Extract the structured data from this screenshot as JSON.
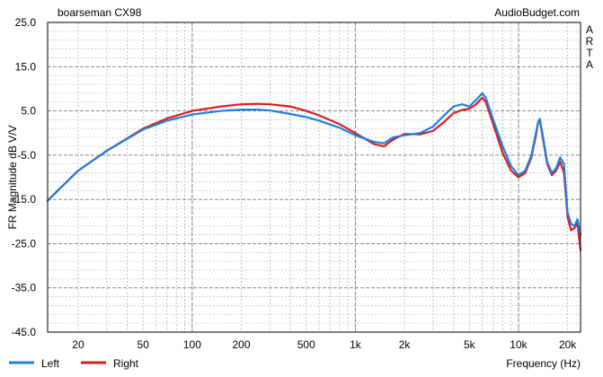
{
  "chart_data": {
    "type": "line",
    "title": "boarseman CX98",
    "watermark": "AudioBudget.com",
    "side_label": [
      "A",
      "R",
      "T",
      "A"
    ],
    "xlabel": "Frequency (Hz)",
    "ylabel": "FR Magnitude dB V/V",
    "x_scale": "log",
    "xlim": [
      13,
      24000
    ],
    "ylim": [
      -45,
      25
    ],
    "y_ticks": [
      "25.0",
      "15.0",
      "5.0",
      "-5.0",
      "-15.0",
      "-25.0",
      "-35.0",
      "-45.0"
    ],
    "x_ticks": [
      {
        "value": 20,
        "label": "20"
      },
      {
        "value": 50,
        "label": "50"
      },
      {
        "value": 100,
        "label": "100"
      },
      {
        "value": 200,
        "label": "200"
      },
      {
        "value": 500,
        "label": "500"
      },
      {
        "value": 1000,
        "label": "1k"
      },
      {
        "value": 2000,
        "label": "2k"
      },
      {
        "value": 5000,
        "label": "5k"
      },
      {
        "value": 10000,
        "label": "10k"
      },
      {
        "value": 20000,
        "label": "20k"
      }
    ],
    "grid": true,
    "legend_position": "bottom-left",
    "series": [
      {
        "name": "Left",
        "color": "#1f7fe0",
        "points": [
          [
            13,
            -15.3
          ],
          [
            15,
            -13.0
          ],
          [
            20,
            -8.5
          ],
          [
            30,
            -4.0
          ],
          [
            50,
            0.8
          ],
          [
            70,
            2.8
          ],
          [
            100,
            4.2
          ],
          [
            150,
            5.0
          ],
          [
            200,
            5.3
          ],
          [
            250,
            5.3
          ],
          [
            300,
            5.1
          ],
          [
            400,
            4.3
          ],
          [
            500,
            3.6
          ],
          [
            600,
            2.8
          ],
          [
            800,
            1.2
          ],
          [
            1000,
            -0.5
          ],
          [
            1300,
            -2.0
          ],
          [
            1500,
            -2.3
          ],
          [
            1700,
            -1.0
          ],
          [
            2000,
            -0.5
          ],
          [
            2500,
            0.0
          ],
          [
            3000,
            1.5
          ],
          [
            3500,
            4.0
          ],
          [
            4000,
            6.0
          ],
          [
            4500,
            6.5
          ],
          [
            5000,
            6.0
          ],
          [
            5500,
            7.5
          ],
          [
            6000,
            9.0
          ],
          [
            6300,
            8.0
          ],
          [
            7000,
            3.0
          ],
          [
            8000,
            -3.0
          ],
          [
            9000,
            -7.5
          ],
          [
            10000,
            -9.5
          ],
          [
            11000,
            -8.5
          ],
          [
            12000,
            -5.0
          ],
          [
            12800,
            0.0
          ],
          [
            13200,
            2.5
          ],
          [
            13500,
            3.2
          ],
          [
            14000,
            0.0
          ],
          [
            15000,
            -6.5
          ],
          [
            16000,
            -9.0
          ],
          [
            17000,
            -8.0
          ],
          [
            18000,
            -5.5
          ],
          [
            19000,
            -7.0
          ],
          [
            20000,
            -18.0
          ],
          [
            21000,
            -20.5
          ],
          [
            22000,
            -21.0
          ],
          [
            23000,
            -19.5
          ],
          [
            24000,
            -23.0
          ]
        ]
      },
      {
        "name": "Right",
        "color": "#d81e1e",
        "points": [
          [
            13,
            -15.3
          ],
          [
            15,
            -13.0
          ],
          [
            20,
            -8.5
          ],
          [
            30,
            -4.0
          ],
          [
            50,
            1.0
          ],
          [
            70,
            3.3
          ],
          [
            100,
            5.0
          ],
          [
            150,
            6.0
          ],
          [
            200,
            6.5
          ],
          [
            250,
            6.6
          ],
          [
            300,
            6.5
          ],
          [
            400,
            6.0
          ],
          [
            500,
            5.0
          ],
          [
            600,
            4.0
          ],
          [
            800,
            2.0
          ],
          [
            1000,
            0.0
          ],
          [
            1300,
            -2.5
          ],
          [
            1500,
            -3.0
          ],
          [
            1700,
            -1.5
          ],
          [
            2000,
            -0.2
          ],
          [
            2500,
            -0.3
          ],
          [
            3000,
            0.5
          ],
          [
            3500,
            2.5
          ],
          [
            4000,
            4.5
          ],
          [
            4500,
            5.2
          ],
          [
            5000,
            5.5
          ],
          [
            5500,
            6.5
          ],
          [
            6000,
            8.0
          ],
          [
            6300,
            7.0
          ],
          [
            7000,
            2.0
          ],
          [
            8000,
            -4.5
          ],
          [
            9000,
            -8.5
          ],
          [
            10000,
            -10.0
          ],
          [
            11000,
            -9.0
          ],
          [
            12000,
            -5.5
          ],
          [
            12800,
            -0.5
          ],
          [
            13200,
            2.5
          ],
          [
            13500,
            3.0
          ],
          [
            14000,
            -0.5
          ],
          [
            15000,
            -7.0
          ],
          [
            16000,
            -9.5
          ],
          [
            17000,
            -8.5
          ],
          [
            18000,
            -6.5
          ],
          [
            19000,
            -9.0
          ],
          [
            20000,
            -19.0
          ],
          [
            21000,
            -22.0
          ],
          [
            22000,
            -21.5
          ],
          [
            23000,
            -20.5
          ],
          [
            24000,
            -26.5
          ]
        ]
      }
    ]
  }
}
